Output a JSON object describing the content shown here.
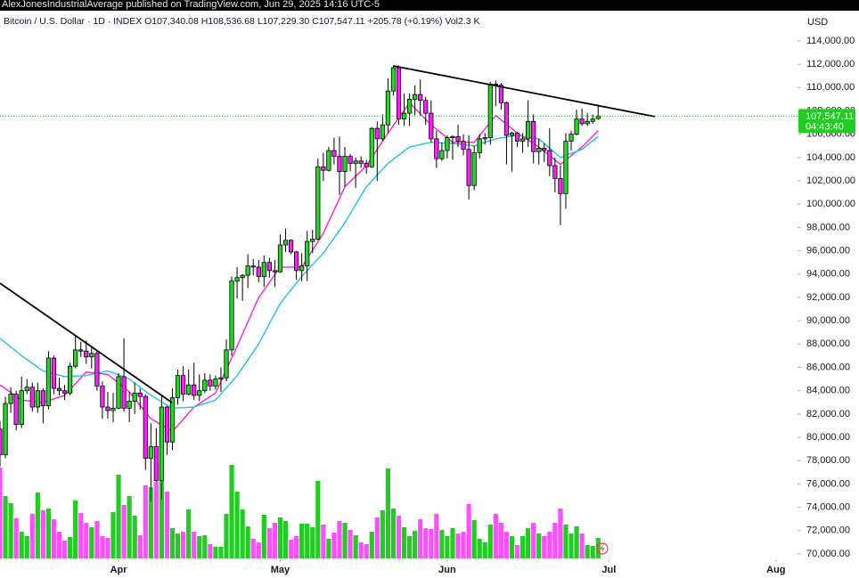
{
  "chart_data": {
    "type": "candlestick",
    "header": "AlexJonesIndustrialAverage published on TradingView.com, Jun 29, 2025 14:16 UTC-5",
    "legend": {
      "symbol": "Bitcoin / U.S. Dollar · 1D · INDEX",
      "open": "O107,340.08",
      "high": "H108,536.68",
      "low": "L107,229.30",
      "close": "C107,547.11",
      "change": "+205.78 (+0.19%)",
      "volume": "Vol2.3 K"
    },
    "currency": "USD",
    "open": [
      80700,
      78500,
      82900,
      83700,
      81100,
      84000,
      84300,
      82600,
      84000,
      82700,
      86800,
      84200,
      84000,
      83800,
      86100,
      87500,
      87400,
      86900,
      87200,
      84400,
      82600,
      82300,
      82500,
      85200,
      82500,
      83100,
      83800,
      83500,
      78200,
      79200,
      76300,
      82600,
      79600,
      83400,
      85300,
      83700,
      84500,
      83600,
      84000,
      84900,
      84400,
      85000,
      85100,
      87500,
      93400,
      93700,
      93900,
      94700,
      94600,
      93800,
      95000,
      94300,
      94200,
      96500,
      96900,
      95900,
      94300,
      94700,
      96800,
      97000,
      103200,
      102900,
      104600,
      104100,
      102800,
      104100,
      103500,
      103700,
      103500,
      103200,
      106500,
      105600,
      106800,
      109700,
      111700,
      107300,
      107800,
      109000,
      109400,
      108900,
      107800,
      105600,
      103900,
      104600,
      105700,
      105800,
      105400,
      104700,
      101600,
      104400,
      105600,
      105700,
      110300,
      110200,
      108700,
      105900,
      106100,
      105400,
      105600,
      107100,
      104500,
      104800,
      104600,
      103300,
      102200,
      100900,
      105400,
      106000,
      107300,
      106900,
      107100,
      107340.08
    ],
    "high": [
      81400,
      83500,
      84300,
      84000,
      85200,
      85000,
      84700,
      84700,
      84200,
      87400,
      87000,
      85100,
      84500,
      86400,
      88700,
      88200,
      88300,
      87800,
      87500,
      84800,
      83900,
      83800,
      85500,
      88500,
      83900,
      84700,
      84200,
      83700,
      81200,
      80800,
      83500,
      82700,
      84200,
      85800,
      86100,
      85800,
      86400,
      85400,
      85500,
      85400,
      85300,
      86000,
      88400,
      93800,
      94600,
      94000,
      95700,
      95300,
      95200,
      95600,
      95400,
      95200,
      97400,
      97900,
      97000,
      96000,
      95800,
      97700,
      97800,
      103900,
      104400,
      104900,
      105700,
      105800,
      104900,
      104300,
      104000,
      104100,
      103800,
      106600,
      107100,
      107700,
      110800,
      111900,
      111900,
      109500,
      109500,
      110200,
      110700,
      109200,
      108900,
      106300,
      105300,
      105900,
      105900,
      106800,
      106000,
      105900,
      105000,
      106000,
      106100,
      110500,
      110600,
      110400,
      108800,
      106200,
      106200,
      106100,
      108900,
      107700,
      105600,
      105200,
      106500,
      104000,
      103300,
      106100,
      106300,
      108100,
      108200,
      107800,
      107700,
      108536.68
    ],
    "low": [
      77500,
      78200,
      82100,
      80600,
      80800,
      83700,
      82200,
      82100,
      81200,
      82400,
      83700,
      83600,
      83200,
      83600,
      85900,
      86900,
      86300,
      85900,
      84000,
      81600,
      81600,
      81300,
      82400,
      82200,
      81300,
      82000,
      82400,
      77200,
      74500,
      76200,
      74600,
      78500,
      78900,
      82800,
      83100,
      83600,
      83200,
      83100,
      83800,
      84000,
      84100,
      83900,
      84800,
      87000,
      91900,
      91700,
      92800,
      93900,
      93300,
      92900,
      93700,
      92900,
      94100,
      95900,
      95700,
      93500,
      93400,
      93400,
      95800,
      96900,
      102000,
      102800,
      103400,
      100800,
      101500,
      102800,
      101400,
      103100,
      102600,
      103100,
      102000,
      105400,
      106100,
      109300,
      106800,
      106700,
      106700,
      107600,
      107600,
      106800,
      105300,
      103100,
      103700,
      103900,
      103800,
      104900,
      104200,
      100400,
      101200,
      103900,
      105100,
      105100,
      108400,
      108100,
      103400,
      102800,
      104900,
      104400,
      104900,
      103500,
      103400,
      103600,
      102400,
      101000,
      98200,
      99600,
      104600,
      105900,
      106700,
      106700,
      106900,
      107229.3
    ],
    "close": [
      78500,
      82900,
      83700,
      81100,
      84000,
      84300,
      82600,
      84000,
      82700,
      86800,
      84200,
      84000,
      83800,
      86100,
      87500,
      87400,
      86900,
      87200,
      84400,
      82600,
      82300,
      82500,
      85200,
      82500,
      83100,
      83800,
      83500,
      78200,
      79200,
      76300,
      82600,
      79600,
      83400,
      85300,
      83700,
      84500,
      83600,
      84000,
      84900,
      84400,
      85000,
      85100,
      87500,
      93400,
      93700,
      93900,
      94700,
      94600,
      93800,
      95000,
      94300,
      94200,
      96500,
      96900,
      95900,
      94300,
      94700,
      96800,
      97000,
      103200,
      102900,
      104600,
      104100,
      102800,
      104100,
      103500,
      103700,
      103500,
      103200,
      106500,
      105600,
      106800,
      109700,
      111700,
      107300,
      107800,
      109000,
      109400,
      108900,
      107800,
      105600,
      103900,
      104600,
      105700,
      105800,
      105400,
      104700,
      101600,
      104400,
      105600,
      105700,
      110300,
      110200,
      108700,
      105900,
      106100,
      105400,
      105600,
      107100,
      104500,
      104800,
      104600,
      103300,
      102200,
      100900,
      105400,
      106000,
      107300,
      106900,
      107100,
      107300,
      107547.11
    ],
    "volume": [
      10.2,
      7.0,
      6.2,
      4.5,
      3.0,
      2.5,
      5.0,
      7.4,
      5.4,
      5.6,
      4.4,
      3.0,
      2.0,
      2.4,
      6.5,
      5.1,
      4.0,
      3.5,
      4.2,
      2.5,
      2.3,
      5.2,
      9.4,
      6.0,
      7.0,
      4.8,
      2.6,
      8.2,
      8.0,
      8.6,
      10.5,
      7.5,
      3.4,
      2.8,
      3.0,
      5.5,
      3.0,
      2.5,
      2.6,
      1.6,
      1.3,
      1.3,
      5.0,
      10.5,
      7.5,
      5.5,
      3.6,
      2.2,
      1.8,
      4.9,
      3.4,
      4.0,
      4.6,
      4.2,
      2.1,
      2.5,
      3.9,
      3.9,
      3.5,
      8.7,
      3.8,
      2.2,
      2.9,
      4.2,
      4.0,
      3.2,
      2.6,
      1.8,
      1.6,
      3.0,
      4.6,
      5.4,
      10.1,
      5.6,
      4.8,
      3.5,
      2.5,
      3.1,
      4.4,
      3.4,
      3.3,
      5.0,
      3.2,
      2.5,
      3.4,
      2.8,
      3.0,
      6.1,
      4.3,
      2.2,
      1.8,
      3.8,
      5.0,
      4.0,
      3.0,
      2.5,
      1.5,
      2.5,
      3.4,
      4.0,
      2.8,
      2.5,
      3.0,
      4.0,
      5.6,
      3.8,
      2.8,
      3.6,
      2.8,
      1.5,
      1.4,
      2.3
    ],
    "vlim": [
      0,
      13
    ],
    "up_color": "#1fdc1f",
    "down_color": "#ff1cff",
    "wick_color": "#000000",
    "volume_up_color": "#22cc22",
    "volume_down_color": "#ff4dff",
    "xlim": [
      0,
      148
    ],
    "xticks": [
      {
        "value": 22,
        "label": "Apr"
      },
      {
        "value": 52,
        "label": "May"
      },
      {
        "value": 83,
        "label": "Jun"
      },
      {
        "value": 113,
        "label": "Jul"
      },
      {
        "value": 144,
        "label": "Aug"
      }
    ],
    "ylim": [
      69540,
      116440
    ],
    "yticks": [
      {
        "value": 70000,
        "label": "70,000.00"
      },
      {
        "value": 72000,
        "label": "72,000.00"
      },
      {
        "value": 74000,
        "label": "74,000.00"
      },
      {
        "value": 76000,
        "label": "76,000.00"
      },
      {
        "value": 78000,
        "label": "78,000.00"
      },
      {
        "value": 80000,
        "label": "80,000.00"
      },
      {
        "value": 82000,
        "label": "82,000.00"
      },
      {
        "value": 84000,
        "label": "84,000.00"
      },
      {
        "value": 86000,
        "label": "86,000.00"
      },
      {
        "value": 88000,
        "label": "88,000.00"
      },
      {
        "value": 90000,
        "label": "90,000.00"
      },
      {
        "value": 92000,
        "label": "92,000.00"
      },
      {
        "value": 94000,
        "label": "94,000.00"
      },
      {
        "value": 96000,
        "label": "96,000.00"
      },
      {
        "value": 98000,
        "label": "98,000.00"
      },
      {
        "value": 100000,
        "label": "100,000.00"
      },
      {
        "value": 102000,
        "label": "102,000.00"
      },
      {
        "value": 104000,
        "label": "104,000.00"
      },
      {
        "value": 106000,
        "label": "106,000.00"
      },
      {
        "value": 108000,
        "label": "108,000.00"
      },
      {
        "value": 110000,
        "label": "110,000.00"
      },
      {
        "value": 112000,
        "label": "112,000.00"
      },
      {
        "value": 114000,
        "label": "114,000.00"
      }
    ],
    "grid": false,
    "lines": [
      {
        "color": "#ff1fd2",
        "x": [
          0,
          4,
          8,
          12,
          16,
          20,
          24,
          28,
          32,
          36,
          40,
          44,
          48,
          52,
          56,
          60,
          64,
          68,
          72,
          76,
          80,
          84,
          88,
          92,
          96,
          100,
          104,
          108,
          111
        ],
        "values": [
          84500,
          83200,
          83000,
          83600,
          85600,
          85400,
          83900,
          81600,
          80500,
          82600,
          83800,
          87800,
          92000,
          94600,
          94600,
          97500,
          101500,
          103300,
          106100,
          108700,
          106800,
          105300,
          105300,
          107600,
          106100,
          104900,
          103400,
          104900,
          106300
        ]
      },
      {
        "color": "#22c4d6",
        "x": [
          0,
          4,
          8,
          12,
          16,
          20,
          24,
          28,
          32,
          36,
          40,
          44,
          48,
          52,
          56,
          60,
          64,
          68,
          72,
          76,
          80,
          84,
          88,
          92,
          96,
          100,
          104,
          108,
          111
        ],
        "values": [
          88500,
          87000,
          85700,
          85200,
          85300,
          85700,
          85000,
          83600,
          82500,
          82600,
          83200,
          85300,
          88000,
          91500,
          93800,
          95800,
          98400,
          101500,
          103500,
          104900,
          105300,
          105200,
          105000,
          105600,
          105900,
          105600,
          104000,
          104700,
          105800
        ]
      }
    ],
    "trendlines": [
      {
        "color": "#000000",
        "x": [
          0,
          31.9
        ],
        "values": [
          93220,
          82980
        ]
      },
      {
        "color": "#000000",
        "x": [
          73,
          121.5
        ],
        "values": [
          111860,
          107510
        ]
      }
    ],
    "price_line_color": "#22cc22",
    "last_price_label": "107,547.11",
    "countdown": "04:43:40"
  }
}
